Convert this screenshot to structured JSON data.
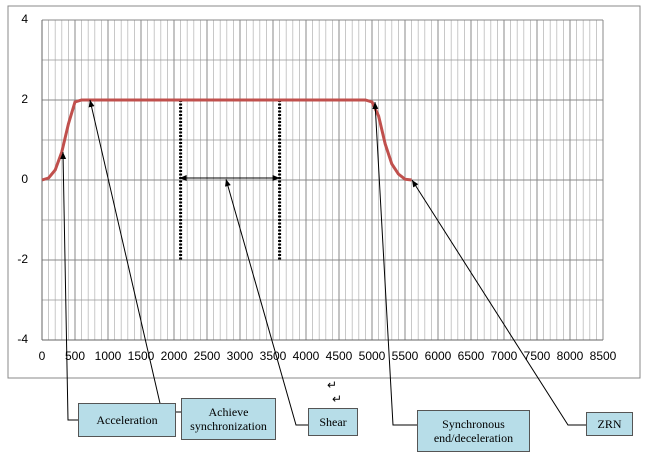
{
  "chart_data": {
    "type": "line",
    "x": [
      0,
      100,
      200,
      300,
      400,
      500,
      600,
      4900,
      5000,
      5100,
      5200,
      5300,
      5400,
      5500,
      5600
    ],
    "series": [
      {
        "color": "#c0504d",
        "values": [
          0,
          0.05,
          0.25,
          0.7,
          1.4,
          1.95,
          2,
          2,
          1.95,
          1.6,
          0.9,
          0.4,
          0.15,
          0.02,
          0
        ]
      }
    ],
    "xlim": [
      0,
      8500
    ],
    "xticks": [
      0,
      500,
      1000,
      1500,
      2000,
      2500,
      3000,
      3500,
      4000,
      4500,
      5000,
      5500,
      6000,
      6500,
      7000,
      7500,
      8000,
      8500
    ],
    "ylim": [
      -4,
      4
    ],
    "yticks": [
      -4,
      -2,
      0,
      2,
      4
    ],
    "grid": true,
    "minor_grid": {
      "x": 100,
      "y": 1
    },
    "markers": [
      {
        "x": 2100,
        "y1": 2,
        "y2": -2
      },
      {
        "x": 3600,
        "y1": 2,
        "y2": -2
      }
    ],
    "span": {
      "x1": 2100,
      "x2": 3600,
      "y": 0.05
    },
    "annotations": [
      {
        "text": "Acceleration",
        "x": 318,
        "y": 0.7
      },
      {
        "text": "Achieve synchronization",
        "x": 727,
        "y": 2
      },
      {
        "text": "Shear",
        "x": 2788,
        "y": 0.02
      },
      {
        "text": "Synchronous end/deceleration",
        "x": 5045,
        "y": 1.95
      },
      {
        "text": "ZRN",
        "x": 5606,
        "y": 0
      }
    ],
    "return_marks": [
      "↵",
      "↵"
    ]
  }
}
